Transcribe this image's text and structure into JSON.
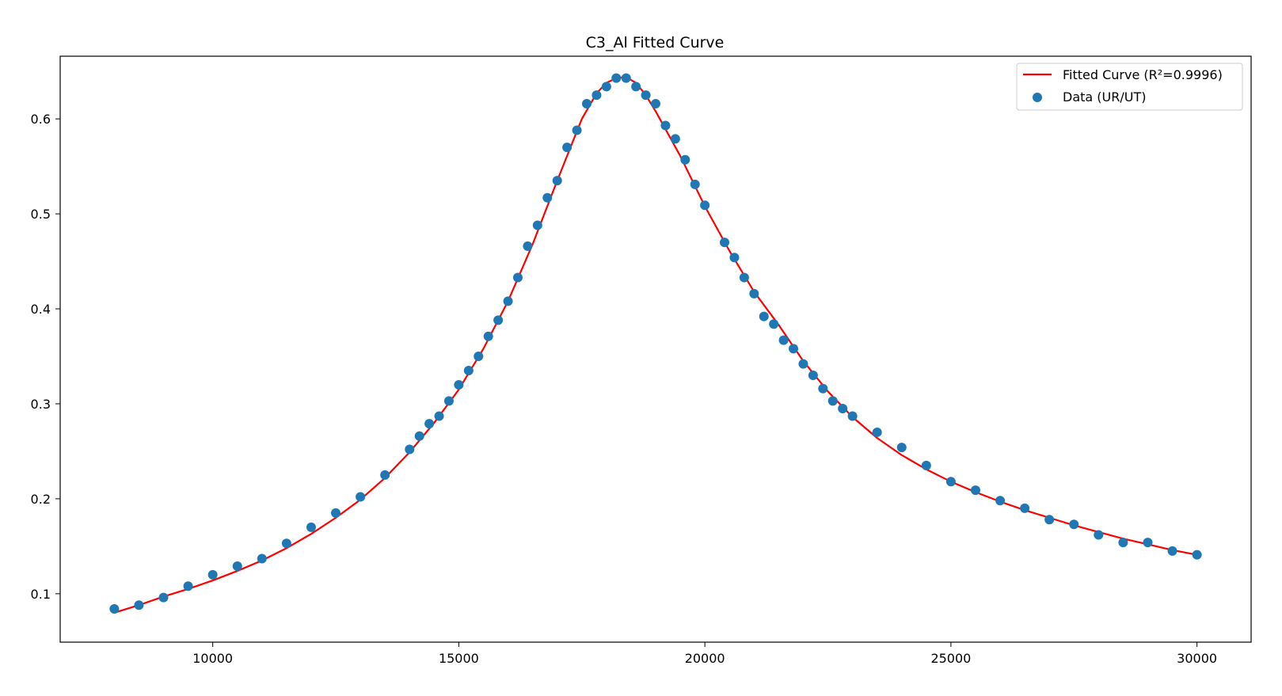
{
  "chart_data": {
    "type": "scatter",
    "title": "C3_Al Fitted Curve",
    "xlabel": "",
    "ylabel": "",
    "xlim": [
      6900,
      31100
    ],
    "ylim": [
      0.049,
      0.666
    ],
    "xticks": [
      10000,
      15000,
      20000,
      25000,
      30000
    ],
    "yticks": [
      0.1,
      0.2,
      0.3,
      0.4,
      0.5,
      0.6
    ],
    "grid": false,
    "legend_position": "top-right",
    "colors": {
      "fit": "#ff0000",
      "data": "#1f77b4"
    },
    "series": [
      {
        "name": "Fitted Curve (R²=0.9996)",
        "kind": "line",
        "x": [
          8000,
          8500,
          9000,
          9500,
          10000,
          10500,
          11000,
          11500,
          12000,
          12500,
          13000,
          13500,
          14000,
          14500,
          15000,
          15500,
          16000,
          16500,
          17000,
          17500,
          17800,
          18000,
          18200,
          18400,
          18600,
          18800,
          19000,
          19500,
          20000,
          20500,
          21000,
          21500,
          22000,
          22500,
          23000,
          23500,
          24000,
          24500,
          25000,
          25500,
          26000,
          26500,
          27000,
          27500,
          28000,
          28500,
          29000,
          29500,
          30000
        ],
        "y": [
          0.08,
          0.088,
          0.097,
          0.105,
          0.114,
          0.124,
          0.135,
          0.148,
          0.163,
          0.18,
          0.199,
          0.222,
          0.249,
          0.28,
          0.315,
          0.358,
          0.408,
          0.468,
          0.535,
          0.6,
          0.627,
          0.638,
          0.643,
          0.644,
          0.638,
          0.625,
          0.608,
          0.561,
          0.508,
          0.461,
          0.418,
          0.383,
          0.345,
          0.313,
          0.286,
          0.264,
          0.246,
          0.231,
          0.218,
          0.207,
          0.197,
          0.188,
          0.18,
          0.172,
          0.165,
          0.158,
          0.152,
          0.146,
          0.141
        ]
      },
      {
        "name": "Data (UR/UT)",
        "kind": "scatter",
        "x": [
          8000,
          8500,
          9000,
          9500,
          10000,
          10500,
          11000,
          11500,
          12000,
          12500,
          13000,
          13500,
          14000,
          14200,
          14400,
          14600,
          14800,
          15000,
          15200,
          15400,
          15600,
          15800,
          16000,
          16200,
          16400,
          16600,
          16800,
          17000,
          17200,
          17400,
          17600,
          17800,
          18000,
          18200,
          18400,
          18600,
          18800,
          19000,
          19200,
          19400,
          19600,
          19800,
          20000,
          20400,
          20600,
          20800,
          21000,
          21200,
          21400,
          21600,
          21800,
          22000,
          22200,
          22400,
          22600,
          22800,
          23000,
          23500,
          24000,
          24500,
          25000,
          25500,
          26000,
          26500,
          27000,
          27500,
          28000,
          28500,
          29000,
          29500,
          30000
        ],
        "y": [
          0.084,
          0.088,
          0.096,
          0.108,
          0.12,
          0.129,
          0.137,
          0.153,
          0.17,
          0.185,
          0.202,
          0.225,
          0.252,
          0.266,
          0.279,
          0.287,
          0.303,
          0.32,
          0.335,
          0.35,
          0.371,
          0.388,
          0.408,
          0.433,
          0.466,
          0.488,
          0.517,
          0.535,
          0.57,
          0.588,
          0.616,
          0.625,
          0.634,
          0.643,
          0.643,
          0.634,
          0.625,
          0.616,
          0.593,
          0.579,
          0.557,
          0.531,
          0.509,
          0.47,
          0.454,
          0.433,
          0.416,
          0.392,
          0.384,
          0.367,
          0.358,
          0.342,
          0.33,
          0.316,
          0.303,
          0.295,
          0.287,
          0.27,
          0.254,
          0.235,
          0.218,
          0.209,
          0.198,
          0.19,
          0.178,
          0.173,
          0.162,
          0.154,
          0.154,
          0.145,
          0.141
        ]
      }
    ]
  }
}
